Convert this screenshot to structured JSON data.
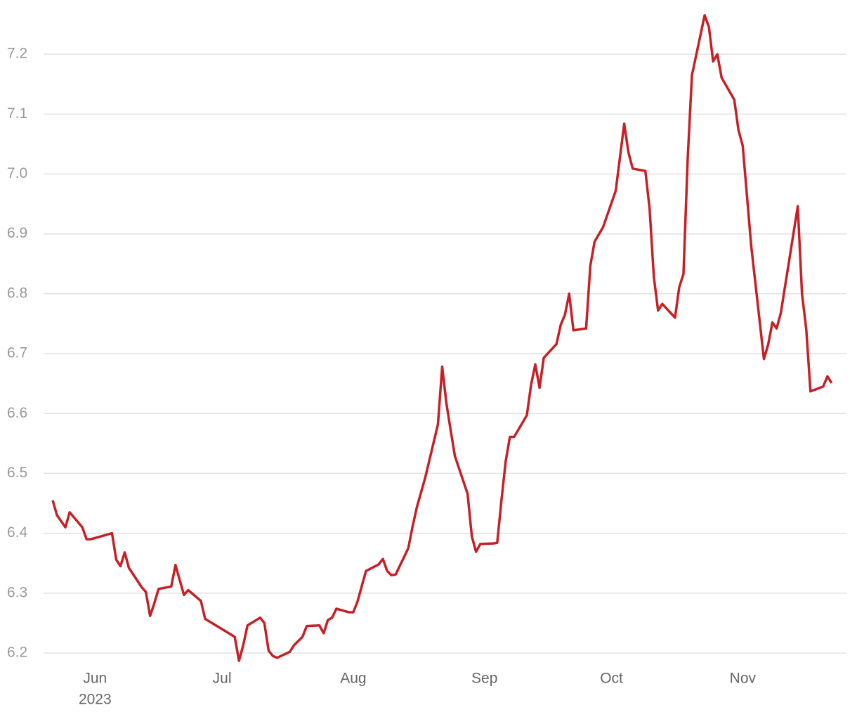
{
  "chart_data": {
    "type": "line",
    "x": [
      -10,
      -9,
      -7,
      -6,
      -3,
      -2,
      -1,
      4,
      5,
      6,
      7,
      8,
      11,
      12,
      13,
      14,
      15,
      18,
      19,
      20,
      21,
      22,
      25,
      26,
      33,
      34,
      35,
      36,
      39,
      40,
      41,
      42,
      43,
      46,
      47,
      49,
      50,
      53,
      54,
      55,
      56,
      57,
      60,
      61,
      62,
      64,
      67,
      68,
      69,
      70,
      71,
      74,
      75,
      76,
      78,
      81,
      82,
      83,
      84,
      85,
      88,
      89,
      90,
      91,
      94,
      95,
      96,
      97,
      98,
      99,
      102,
      103,
      104,
      105,
      106,
      109,
      110,
      111,
      112,
      113,
      116,
      117,
      118,
      120,
      123,
      125,
      126,
      127,
      130,
      131,
      132,
      133,
      134,
      137,
      138,
      139,
      140,
      141,
      144,
      145,
      146,
      147,
      148,
      151,
      152,
      153,
      155,
      158,
      159,
      160,
      161,
      162,
      166,
      167,
      168,
      169,
      172,
      173,
      174
    ],
    "values": [
      6.455,
      6.43,
      6.41,
      6.435,
      6.41,
      6.39,
      6.39,
      6.4,
      6.356,
      6.345,
      6.368,
      6.342,
      6.31,
      6.302,
      6.262,
      6.283,
      6.307,
      6.311,
      6.347,
      6.322,
      6.297,
      6.305,
      6.287,
      6.257,
      6.227,
      6.187,
      6.213,
      6.246,
      6.259,
      6.25,
      6.204,
      6.195,
      6.192,
      6.202,
      6.213,
      6.227,
      6.245,
      6.246,
      6.233,
      6.255,
      6.259,
      6.274,
      6.268,
      6.268,
      6.286,
      6.337,
      6.348,
      6.357,
      6.337,
      6.33,
      6.331,
      6.375,
      6.411,
      6.443,
      6.493,
      6.582,
      6.678,
      6.617,
      6.572,
      6.529,
      6.466,
      6.395,
      6.369,
      6.382,
      6.383,
      6.384,
      6.455,
      6.52,
      6.561,
      6.561,
      6.597,
      6.648,
      6.682,
      6.643,
      6.693,
      6.716,
      6.748,
      6.765,
      6.8,
      6.739,
      6.742,
      6.847,
      6.887,
      6.911,
      6.972,
      7.084,
      7.036,
      7.009,
      7.005,
      6.942,
      6.828,
      6.772,
      6.783,
      6.76,
      6.811,
      6.833,
      7.026,
      7.165,
      7.265,
      7.246,
      7.188,
      7.2,
      7.161,
      7.124,
      7.073,
      7.047,
      6.88,
      6.691,
      6.715,
      6.752,
      6.742,
      6.768,
      6.946,
      6.8,
      6.741,
      6.637,
      6.645,
      6.662,
      6.651
    ],
    "color": "#c62026",
    "xlim": [
      -12,
      178
    ],
    "xticks": [
      {
        "value": 0,
        "label": "Jun"
      },
      {
        "value": 30,
        "label": "Jul"
      },
      {
        "value": 61,
        "label": "Aug"
      },
      {
        "value": 92,
        "label": "Sep"
      },
      {
        "value": 122,
        "label": "Oct"
      },
      {
        "value": 153,
        "label": "Nov"
      }
    ],
    "year_label": "2023",
    "ylim": [
      6.18,
      7.28
    ],
    "yticks": [
      {
        "value": 6.2,
        "label": "6.2"
      },
      {
        "value": 6.3,
        "label": "6.3"
      },
      {
        "value": 6.4,
        "label": "6.4"
      },
      {
        "value": 6.5,
        "label": "6.5"
      },
      {
        "value": 6.6,
        "label": "6.6"
      },
      {
        "value": 6.7,
        "label": "6.7"
      },
      {
        "value": 6.8,
        "label": "6.8"
      },
      {
        "value": 6.9,
        "label": "6.9"
      },
      {
        "value": 7.0,
        "label": "7.0"
      },
      {
        "value": 7.1,
        "label": "7.1"
      },
      {
        "value": 7.2,
        "label": "7.2"
      }
    ],
    "grid": true
  }
}
